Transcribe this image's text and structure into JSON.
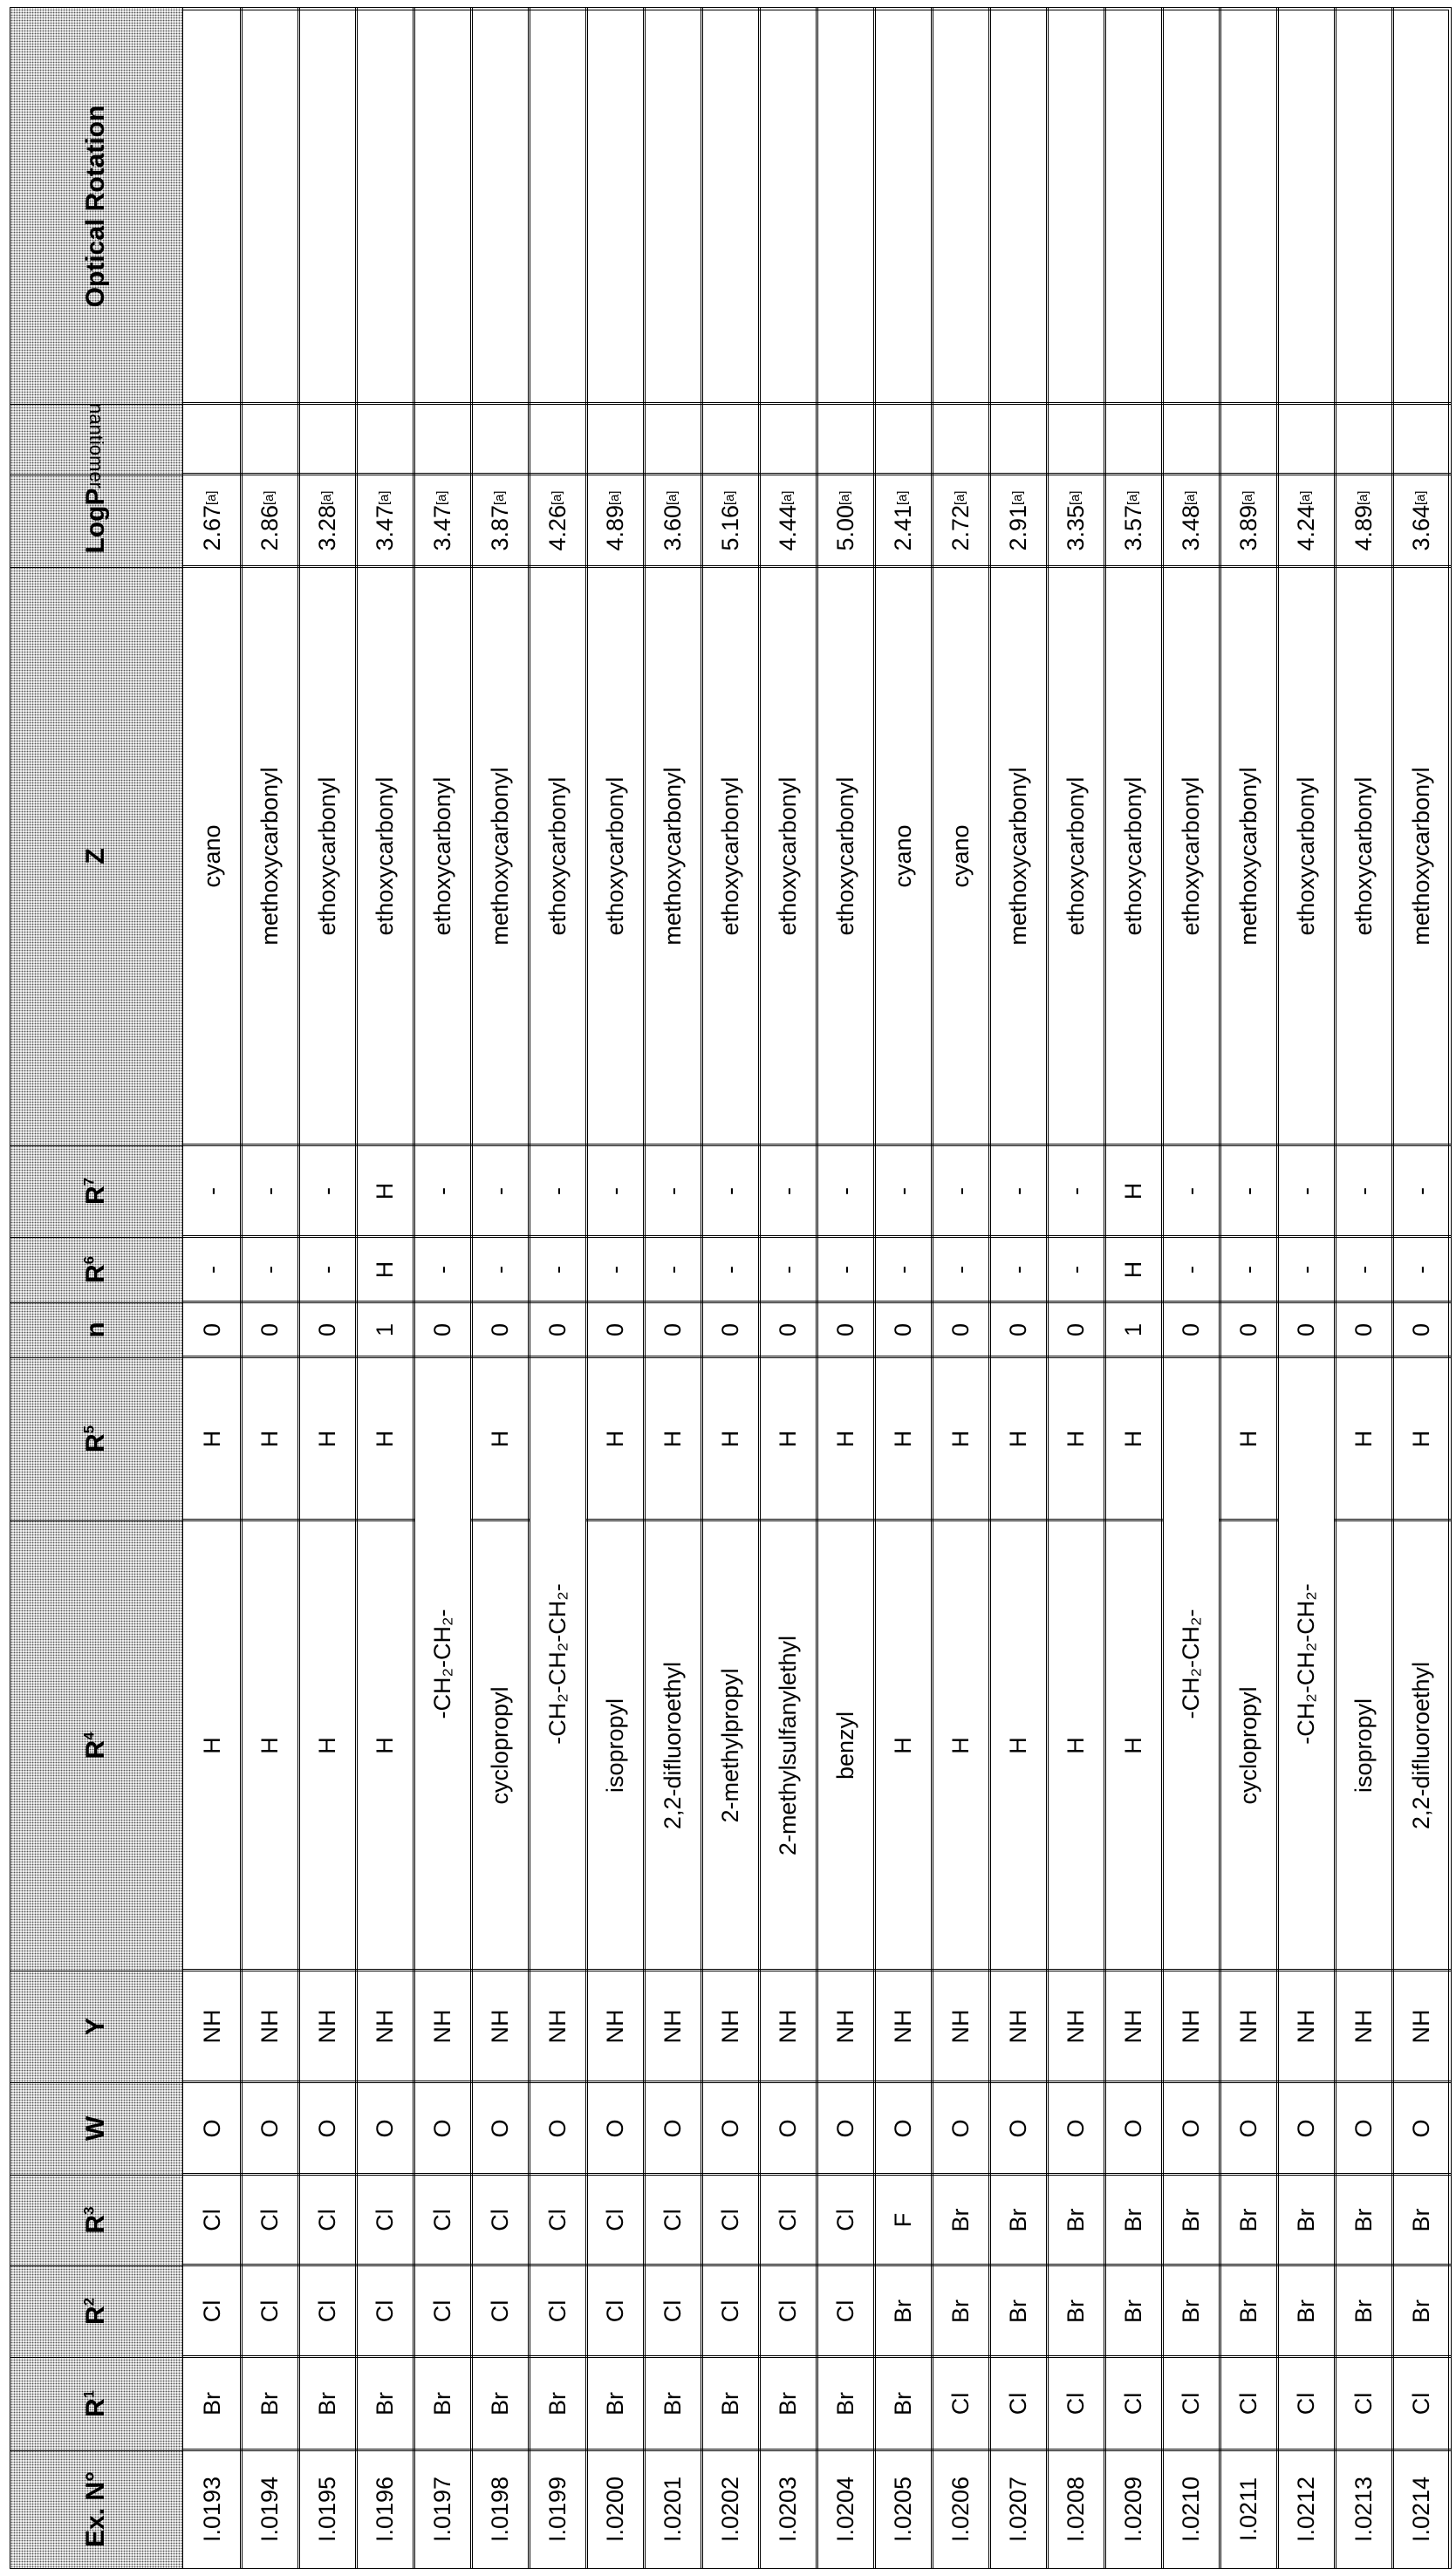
{
  "table": {
    "headers": [
      {
        "key": "ex",
        "label": "Ex. N°",
        "sup": ""
      },
      {
        "key": "r1",
        "label": "R",
        "sup": "1"
      },
      {
        "key": "r2",
        "label": "R",
        "sup": "2"
      },
      {
        "key": "r3",
        "label": "R",
        "sup": "3"
      },
      {
        "key": "w",
        "label": "W",
        "sup": ""
      },
      {
        "key": "y",
        "label": "Y",
        "sup": ""
      },
      {
        "key": "r4",
        "label": "R",
        "sup": "4"
      },
      {
        "key": "r5",
        "label": "R",
        "sup": "5"
      },
      {
        "key": "n",
        "label": "n",
        "sup": ""
      },
      {
        "key": "r6",
        "label": "R",
        "sup": "6"
      },
      {
        "key": "r7",
        "label": "R",
        "sup": "7"
      },
      {
        "key": "z",
        "label": "Z",
        "sup": ""
      },
      {
        "key": "logp",
        "label": "LogP",
        "sup": ""
      },
      {
        "key": "enantiomer",
        "label": "Enantiomer",
        "sup": ""
      },
      {
        "key": "optical_rotation",
        "label": "Optical Rotation",
        "sup": ""
      }
    ],
    "logp_note": "[a]",
    "rows": [
      {
        "ex": "I.0193",
        "r1": "Br",
        "r2": "Cl",
        "r3": "Cl",
        "w": "O",
        "y": "NH",
        "r4": "H",
        "r5": "H",
        "n": "0",
        "r6": "-",
        "r7": "-",
        "z": "cyano",
        "logp": "2.67",
        "enantiomer": "",
        "optical_rotation": ""
      },
      {
        "ex": "I.0194",
        "r1": "Br",
        "r2": "Cl",
        "r3": "Cl",
        "w": "O",
        "y": "NH",
        "r4": "H",
        "r5": "H",
        "n": "0",
        "r6": "-",
        "r7": "-",
        "z": "methoxycarbonyl",
        "logp": "2.86",
        "enantiomer": "",
        "optical_rotation": ""
      },
      {
        "ex": "I.0195",
        "r1": "Br",
        "r2": "Cl",
        "r3": "Cl",
        "w": "O",
        "y": "NH",
        "r4": "H",
        "r5": "H",
        "n": "0",
        "r6": "-",
        "r7": "-",
        "z": "ethoxycarbonyl",
        "logp": "3.28",
        "enantiomer": "",
        "optical_rotation": ""
      },
      {
        "ex": "I.0196",
        "r1": "Br",
        "r2": "Cl",
        "r3": "Cl",
        "w": "O",
        "y": "NH",
        "r4": "H",
        "r5": "H",
        "n": "1",
        "r6": "H",
        "r7": "H",
        "z": "ethoxycarbonyl",
        "logp": "3.47",
        "enantiomer": "",
        "optical_rotation": ""
      },
      {
        "ex": "I.0197",
        "r1": "Br",
        "r2": "Cl",
        "r3": "Cl",
        "w": "O",
        "y": "NH",
        "r4_r5": "-CH₂-CH₂-",
        "n": "0",
        "r6": "-",
        "r7": "-",
        "z": "ethoxycarbonyl",
        "logp": "3.47",
        "enantiomer": "",
        "optical_rotation": ""
      },
      {
        "ex": "I.0198",
        "r1": "Br",
        "r2": "Cl",
        "r3": "Cl",
        "w": "O",
        "y": "NH",
        "r4": "cyclopropyl",
        "r5": "H",
        "n": "0",
        "r6": "-",
        "r7": "-",
        "z": "methoxycarbonyl",
        "logp": "3.87",
        "enantiomer": "",
        "optical_rotation": ""
      },
      {
        "ex": "I.0199",
        "r1": "Br",
        "r2": "Cl",
        "r3": "Cl",
        "w": "O",
        "y": "NH",
        "r4_r5": "-CH₂-CH₂-CH₂-",
        "n": "0",
        "r6": "-",
        "r7": "-",
        "z": "ethoxycarbonyl",
        "logp": "4.26",
        "enantiomer": "",
        "optical_rotation": ""
      },
      {
        "ex": "I.0200",
        "r1": "Br",
        "r2": "Cl",
        "r3": "Cl",
        "w": "O",
        "y": "NH",
        "r4": "isopropyl",
        "r5": "H",
        "n": "0",
        "r6": "-",
        "r7": "-",
        "z": "ethoxycarbonyl",
        "logp": "4.89",
        "enantiomer": "",
        "optical_rotation": ""
      },
      {
        "ex": "I.0201",
        "r1": "Br",
        "r2": "Cl",
        "r3": "Cl",
        "w": "O",
        "y": "NH",
        "r4": "2,2-difluoroethyl",
        "r5": "H",
        "n": "0",
        "r6": "-",
        "r7": "-",
        "z": "methoxycarbonyl",
        "logp": "3.60",
        "enantiomer": "",
        "optical_rotation": ""
      },
      {
        "ex": "I.0202",
        "r1": "Br",
        "r2": "Cl",
        "r3": "Cl",
        "w": "O",
        "y": "NH",
        "r4": "2-methylpropyl",
        "r5": "H",
        "n": "0",
        "r6": "-",
        "r7": "-",
        "z": "ethoxycarbonyl",
        "logp": "5.16",
        "enantiomer": "",
        "optical_rotation": ""
      },
      {
        "ex": "I.0203",
        "r1": "Br",
        "r2": "Cl",
        "r3": "Cl",
        "w": "O",
        "y": "NH",
        "r4": "2-methylsulfanylethyl",
        "r5": "H",
        "n": "0",
        "r6": "-",
        "r7": "-",
        "z": "ethoxycarbonyl",
        "logp": "4.44",
        "enantiomer": "",
        "optical_rotation": ""
      },
      {
        "ex": "I.0204",
        "r1": "Br",
        "r2": "Cl",
        "r3": "Cl",
        "w": "O",
        "y": "NH",
        "r4": "benzyl",
        "r5": "H",
        "n": "0",
        "r6": "-",
        "r7": "-",
        "z": "ethoxycarbonyl",
        "logp": "5.00",
        "enantiomer": "",
        "optical_rotation": ""
      },
      {
        "ex": "I.0205",
        "r1": "Br",
        "r2": "Br",
        "r3": "F",
        "w": "O",
        "y": "NH",
        "r4": "H",
        "r5": "H",
        "n": "0",
        "r6": "-",
        "r7": "-",
        "z": "cyano",
        "logp": "2.41",
        "enantiomer": "",
        "optical_rotation": ""
      },
      {
        "ex": "I.0206",
        "r1": "Cl",
        "r2": "Br",
        "r3": "Br",
        "w": "O",
        "y": "NH",
        "r4": "H",
        "r5": "H",
        "n": "0",
        "r6": "-",
        "r7": "-",
        "z": "cyano",
        "logp": "2.72",
        "enantiomer": "",
        "optical_rotation": ""
      },
      {
        "ex": "I.0207",
        "r1": "Cl",
        "r2": "Br",
        "r3": "Br",
        "w": "O",
        "y": "NH",
        "r4": "H",
        "r5": "H",
        "n": "0",
        "r6": "-",
        "r7": "-",
        "z": "methoxycarbonyl",
        "logp": "2.91",
        "enantiomer": "",
        "optical_rotation": ""
      },
      {
        "ex": "I.0208",
        "r1": "Cl",
        "r2": "Br",
        "r3": "Br",
        "w": "O",
        "y": "NH",
        "r4": "H",
        "r5": "H",
        "n": "0",
        "r6": "-",
        "r7": "-",
        "z": "ethoxycarbonyl",
        "logp": "3.35",
        "enantiomer": "",
        "optical_rotation": ""
      },
      {
        "ex": "I.0209",
        "r1": "Cl",
        "r2": "Br",
        "r3": "Br",
        "w": "O",
        "y": "NH",
        "r4": "H",
        "r5": "H",
        "n": "1",
        "r6": "H",
        "r7": "H",
        "z": "ethoxycarbonyl",
        "logp": "3.57",
        "enantiomer": "",
        "optical_rotation": ""
      },
      {
        "ex": "I.0210",
        "r1": "Cl",
        "r2": "Br",
        "r3": "Br",
        "w": "O",
        "y": "NH",
        "r4_r5": "-CH₂-CH₂-",
        "n": "0",
        "r6": "-",
        "r7": "-",
        "z": "ethoxycarbonyl",
        "logp": "3.48",
        "enantiomer": "",
        "optical_rotation": ""
      },
      {
        "ex": "I.0211",
        "r1": "Cl",
        "r2": "Br",
        "r3": "Br",
        "w": "O",
        "y": "NH",
        "r4": "cyclopropyl",
        "r5": "H",
        "n": "0",
        "r6": "-",
        "r7": "-",
        "z": "methoxycarbonyl",
        "logp": "3.89",
        "enantiomer": "",
        "optical_rotation": ""
      },
      {
        "ex": "I.0212",
        "r1": "Cl",
        "r2": "Br",
        "r3": "Br",
        "w": "O",
        "y": "NH",
        "r4_r5": "-CH₂-CH₂-CH₂-",
        "n": "0",
        "r6": "-",
        "r7": "-",
        "z": "ethoxycarbonyl",
        "logp": "4.24",
        "enantiomer": "",
        "optical_rotation": ""
      },
      {
        "ex": "I.0213",
        "r1": "Cl",
        "r2": "Br",
        "r3": "Br",
        "w": "O",
        "y": "NH",
        "r4": "isopropyl",
        "r5": "H",
        "n": "0",
        "r6": "-",
        "r7": "-",
        "z": "ethoxycarbonyl",
        "logp": "4.89",
        "enantiomer": "",
        "optical_rotation": ""
      },
      {
        "ex": "I.0214",
        "r1": "Cl",
        "r2": "Br",
        "r3": "Br",
        "w": "O",
        "y": "NH",
        "r4": "2,2-difluoroethyl",
        "r5": "H",
        "n": "0",
        "r6": "-",
        "r7": "-",
        "z": "methoxycarbonyl",
        "logp": "3.64",
        "enantiomer": "",
        "optical_rotation": ""
      }
    ]
  }
}
